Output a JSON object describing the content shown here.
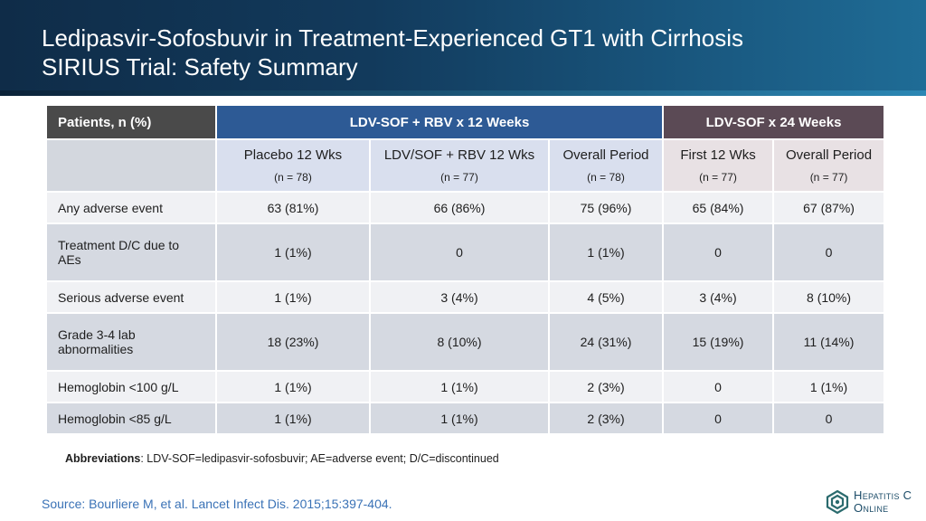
{
  "slide": {
    "title_line1": "Ledipasvir-Sofosbuvir in Treatment-Experienced GT1 with Cirrhosis",
    "title_line2": "SIRIUS Trial: Safety Summary"
  },
  "table": {
    "patients_header": "Patients, n (%)",
    "group1_header": "LDV-SOF + RBV x 12 Weeks",
    "group2_header": "LDV-SOF x 24 Weeks",
    "columns": [
      {
        "label": "Placebo 12 Wks",
        "n": "(n = 78)"
      },
      {
        "label": "LDV/SOF + RBV 12 Wks",
        "n": "(n = 77)"
      },
      {
        "label": "Overall Period",
        "n": "(n = 78)"
      },
      {
        "label": "First 12 Wks",
        "n": "(n = 77)"
      },
      {
        "label": "Overall Period",
        "n": "(n = 77)"
      }
    ],
    "rows": [
      {
        "label": "Any adverse event",
        "values": [
          "63 (81%)",
          "66 (86%)",
          "75 (96%)",
          "65 (84%)",
          "67 (87%)"
        ]
      },
      {
        "label": "Treatment D/C due to AEs",
        "values": [
          "1 (1%)",
          "0",
          "1 (1%)",
          "0",
          "0"
        ]
      },
      {
        "label": "Serious adverse event",
        "values": [
          "1 (1%)",
          "3 (4%)",
          "4 (5%)",
          "3 (4%)",
          "8 (10%)"
        ]
      },
      {
        "label": "Grade 3-4 lab abnormalities",
        "values": [
          "18 (23%)",
          "8 (10%)",
          "24 (31%)",
          "15 (19%)",
          "11 (14%)"
        ]
      },
      {
        "label": "Hemoglobin <100 g/L",
        "values": [
          "1 (1%)",
          "1 (1%)",
          "2 (3%)",
          "0",
          "1 (1%)"
        ]
      },
      {
        "label": "Hemoglobin <85 g/L",
        "values": [
          "1 (1%)",
          "1 (1%)",
          "2 (3%)",
          "0",
          "0"
        ]
      }
    ]
  },
  "abbreviations": {
    "label": "Abbreviations",
    "text": ": LDV-SOF=ledipasvir-sofosbuvir; AE=adverse event; D/C=discontinued"
  },
  "source": "Source: Bourliere M, et al. Lancet Infect Dis. 2015;15:397-404.",
  "logo": {
    "line1": "Hepatitis C",
    "line2": "Online",
    "icon": "hepatitis-c-online-logo-icon"
  }
}
